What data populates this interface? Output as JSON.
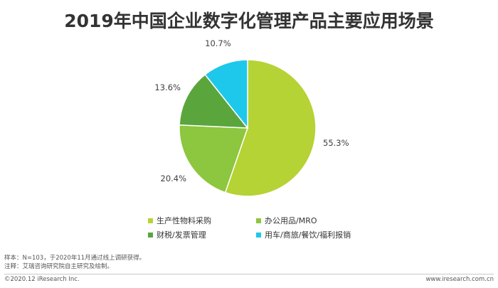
{
  "chart_data": {
    "type": "pie",
    "title": "2019年中国企业数字化管理产品主要应用场景",
    "slices": [
      {
        "label": "生产性物料采购",
        "value": 55.3,
        "value_label": "55.3%",
        "color": "#b5d334"
      },
      {
        "label": "办公用品/MRO",
        "value": 20.4,
        "value_label": "20.4%",
        "color": "#8dc63f"
      },
      {
        "label": "财税/发票管理",
        "value": 13.6,
        "value_label": "13.6%",
        "color": "#5aa63c"
      },
      {
        "label": "用车/商旅/餐饮/福利报销",
        "value": 10.7,
        "value_label": "10.7%",
        "color": "#1ec8ea"
      }
    ],
    "legend_position": "bottom"
  },
  "notes": {
    "sample": "样本：N=103，于2020年11月通过线上调研获得。",
    "source": "注释：艾瑞咨询研究院自主研究及绘制。"
  },
  "footer": {
    "copyright": "©2020.12 iResearch Inc.",
    "website": "www.iresearch.com.cn"
  }
}
